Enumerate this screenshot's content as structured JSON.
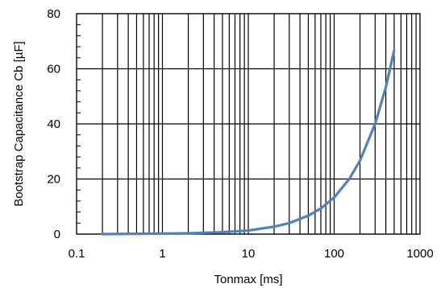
{
  "chart_data": {
    "type": "line",
    "title": "",
    "xlabel": "Tonmax [ms]",
    "ylabel": "Bootstrap Capacitance Cb [µF]",
    "xscale": "log",
    "xlim": [
      0.1,
      1000
    ],
    "ylim": [
      0,
      80
    ],
    "xticks": [
      0.1,
      1,
      10,
      100,
      1000
    ],
    "xtick_labels": [
      "0.1",
      "1",
      "10",
      "100",
      "1000"
    ],
    "yticks": [
      0,
      20,
      40,
      60,
      80
    ],
    "ytick_labels": [
      "0",
      "20",
      "40",
      "60",
      "80"
    ],
    "grid": true,
    "legend": "none",
    "series": [
      {
        "color": "#4f81bd",
        "x": [
          0.2,
          0.5,
          1,
          2,
          5,
          10,
          20,
          30,
          50,
          70,
          100,
          150,
          200,
          300,
          400,
          500
        ],
        "y": [
          0.0,
          0.1,
          0.2,
          0.3,
          0.7,
          1.3,
          2.7,
          4.0,
          6.7,
          9.3,
          13.3,
          20.0,
          26.7,
          40.0,
          53.3,
          66.7
        ]
      }
    ]
  }
}
